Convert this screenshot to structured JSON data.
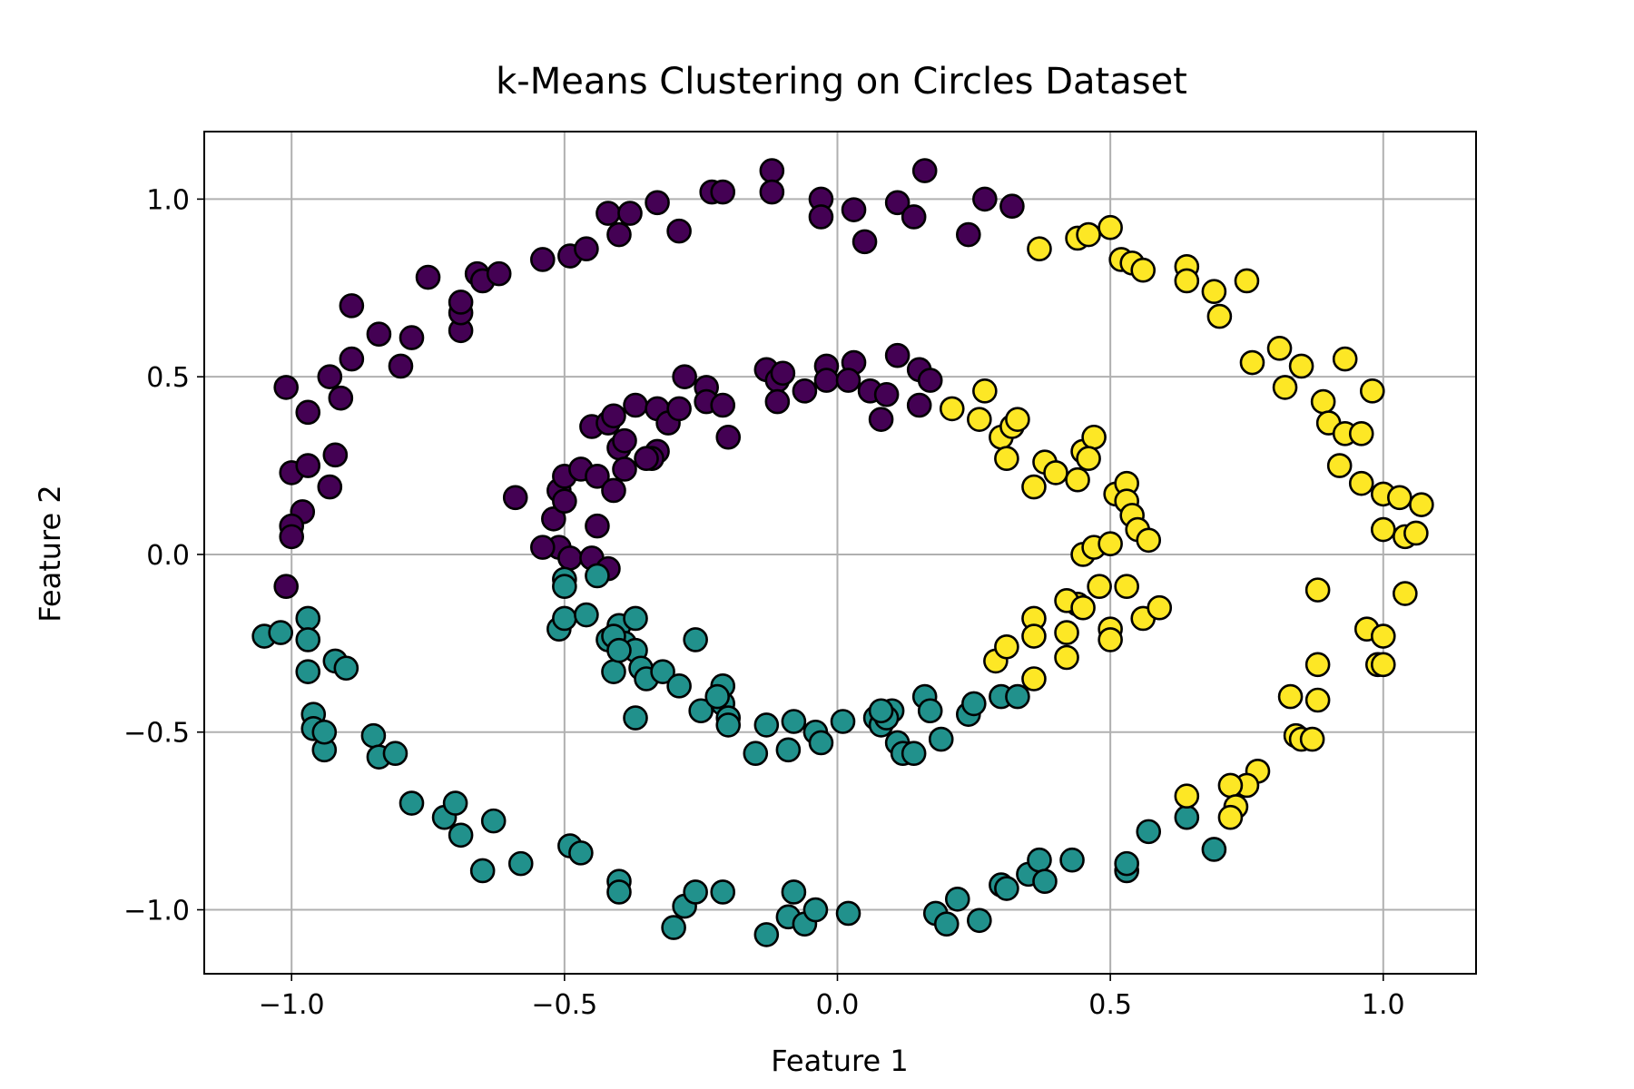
{
  "chart_data": {
    "type": "scatter",
    "title": "k-Means Clustering on Circles Dataset",
    "xlabel": "Feature 1",
    "ylabel": "Feature 2",
    "xlim": [
      -1.16,
      1.17
    ],
    "ylim": [
      -1.18,
      1.19
    ],
    "xticks": [
      -1.0,
      -0.5,
      0.0,
      0.5,
      1.0
    ],
    "xtick_labels": [
      "−1.0",
      "−0.5",
      "0.0",
      "0.5",
      "1.0"
    ],
    "yticks": [
      -1.0,
      -0.5,
      0.0,
      0.5,
      1.0
    ],
    "ytick_labels": [
      "−1.0",
      "−0.5",
      "0.0",
      "0.5",
      "1.0"
    ],
    "grid": true,
    "series": [
      {
        "color": "#440154",
        "points": [
          [
            -1.01,
            0.47
          ],
          [
            -0.97,
            0.4
          ],
          [
            -1.0,
            0.23
          ],
          [
            -0.97,
            0.25
          ],
          [
            -0.92,
            0.28
          ],
          [
            -0.93,
            0.19
          ],
          [
            -0.98,
            0.12
          ],
          [
            -1.0,
            0.08
          ],
          [
            -1.0,
            0.05
          ],
          [
            -1.01,
            -0.09
          ],
          [
            -0.93,
            0.5
          ],
          [
            -0.91,
            0.44
          ],
          [
            -0.89,
            0.55
          ],
          [
            -0.89,
            0.7
          ],
          [
            -0.84,
            0.62
          ],
          [
            -0.78,
            0.61
          ],
          [
            -0.8,
            0.53
          ],
          [
            -0.75,
            0.78
          ],
          [
            -0.69,
            0.63
          ],
          [
            -0.69,
            0.68
          ],
          [
            -0.69,
            0.71
          ],
          [
            -0.66,
            0.79
          ],
          [
            -0.65,
            0.77
          ],
          [
            -0.62,
            0.79
          ],
          [
            -0.54,
            0.83
          ],
          [
            -0.49,
            0.84
          ],
          [
            -0.46,
            0.86
          ],
          [
            -0.42,
            0.96
          ],
          [
            -0.4,
            0.9
          ],
          [
            -0.38,
            0.96
          ],
          [
            -0.33,
            0.99
          ],
          [
            -0.29,
            0.91
          ],
          [
            -0.23,
            1.02
          ],
          [
            -0.21,
            1.02
          ],
          [
            -0.12,
            1.08
          ],
          [
            -0.12,
            1.02
          ],
          [
            -0.03,
            1.0
          ],
          [
            -0.03,
            0.95
          ],
          [
            0.03,
            0.97
          ],
          [
            0.05,
            0.88
          ],
          [
            0.11,
            0.99
          ],
          [
            0.14,
            0.95
          ],
          [
            0.16,
            1.08
          ],
          [
            0.24,
            0.9
          ],
          [
            0.27,
            1.0
          ],
          [
            0.32,
            0.98
          ],
          [
            -0.59,
            0.16
          ],
          [
            -0.51,
            0.02
          ],
          [
            -0.52,
            0.1
          ],
          [
            -0.51,
            0.18
          ],
          [
            -0.5,
            0.22
          ],
          [
            -0.47,
            0.24
          ],
          [
            -0.45,
            0.36
          ],
          [
            -0.44,
            0.22
          ],
          [
            -0.42,
            0.37
          ],
          [
            -0.41,
            0.39
          ],
          [
            -0.4,
            0.3
          ],
          [
            -0.39,
            0.24
          ],
          [
            -0.41,
            0.18
          ],
          [
            -0.44,
            0.08
          ],
          [
            -0.37,
            0.42
          ],
          [
            -0.33,
            0.41
          ],
          [
            -0.31,
            0.37
          ],
          [
            -0.28,
            0.5
          ],
          [
            -0.24,
            0.47
          ],
          [
            -0.24,
            0.43
          ],
          [
            -0.21,
            0.42
          ],
          [
            -0.2,
            0.33
          ],
          [
            -0.13,
            0.52
          ],
          [
            -0.11,
            0.49
          ],
          [
            -0.1,
            0.51
          ],
          [
            -0.11,
            0.43
          ],
          [
            -0.06,
            0.46
          ],
          [
            -0.02,
            0.53
          ],
          [
            -0.02,
            0.49
          ],
          [
            0.03,
            0.54
          ],
          [
            0.06,
            0.46
          ],
          [
            0.08,
            0.38
          ],
          [
            0.11,
            0.56
          ],
          [
            0.15,
            0.52
          ],
          [
            0.15,
            0.42
          ],
          [
            0.17,
            0.49
          ],
          [
            -0.33,
            0.29
          ],
          [
            -0.34,
            0.27
          ],
          [
            -0.49,
            -0.01
          ],
          [
            -0.45,
            -0.01
          ],
          [
            -0.42,
            -0.04
          ],
          [
            -0.5,
            0.15
          ],
          [
            -0.54,
            0.02
          ],
          [
            -0.35,
            0.27
          ],
          [
            -0.39,
            0.32
          ],
          [
            -0.29,
            0.41
          ],
          [
            0.02,
            0.49
          ],
          [
            0.09,
            0.45
          ]
        ]
      },
      {
        "color": "#21918c",
        "points": [
          [
            -1.05,
            -0.23
          ],
          [
            -1.02,
            -0.22
          ],
          [
            -0.97,
            -0.18
          ],
          [
            -0.97,
            -0.24
          ],
          [
            -0.97,
            -0.33
          ],
          [
            -0.96,
            -0.45
          ],
          [
            -0.96,
            -0.49
          ],
          [
            -0.94,
            -0.55
          ],
          [
            -0.94,
            -0.5
          ],
          [
            -0.92,
            -0.3
          ],
          [
            -0.9,
            -0.32
          ],
          [
            -0.85,
            -0.51
          ],
          [
            -0.84,
            -0.57
          ],
          [
            -0.81,
            -0.56
          ],
          [
            -0.78,
            -0.7
          ],
          [
            -0.72,
            -0.74
          ],
          [
            -0.7,
            -0.7
          ],
          [
            -0.69,
            -0.79
          ],
          [
            -0.63,
            -0.75
          ],
          [
            -0.65,
            -0.89
          ],
          [
            -0.58,
            -0.87
          ],
          [
            -0.49,
            -0.82
          ],
          [
            -0.47,
            -0.84
          ],
          [
            -0.4,
            -0.92
          ],
          [
            -0.4,
            -0.95
          ],
          [
            -0.3,
            -1.05
          ],
          [
            -0.28,
            -0.99
          ],
          [
            -0.26,
            -0.95
          ],
          [
            -0.21,
            -0.95
          ],
          [
            -0.13,
            -1.07
          ],
          [
            -0.09,
            -1.02
          ],
          [
            -0.06,
            -1.04
          ],
          [
            -0.08,
            -0.95
          ],
          [
            -0.04,
            -1.0
          ],
          [
            0.02,
            -1.01
          ],
          [
            0.18,
            -1.01
          ],
          [
            0.2,
            -1.04
          ],
          [
            0.22,
            -0.97
          ],
          [
            0.26,
            -1.03
          ],
          [
            0.3,
            -0.93
          ],
          [
            0.31,
            -0.94
          ],
          [
            0.35,
            -0.9
          ],
          [
            0.37,
            -0.86
          ],
          [
            0.38,
            -0.92
          ],
          [
            0.43,
            -0.86
          ],
          [
            0.53,
            -0.89
          ],
          [
            0.53,
            -0.87
          ],
          [
            0.57,
            -0.78
          ],
          [
            0.64,
            -0.74
          ],
          [
            0.69,
            -0.83
          ],
          [
            -0.51,
            -0.21
          ],
          [
            -0.5,
            -0.07
          ],
          [
            -0.5,
            -0.09
          ],
          [
            -0.5,
            -0.18
          ],
          [
            -0.46,
            -0.17
          ],
          [
            -0.44,
            -0.06
          ],
          [
            -0.42,
            -0.24
          ],
          [
            -0.4,
            -0.2
          ],
          [
            -0.39,
            -0.25
          ],
          [
            -0.37,
            -0.18
          ],
          [
            -0.37,
            -0.27
          ],
          [
            -0.36,
            -0.32
          ],
          [
            -0.37,
            -0.46
          ],
          [
            -0.35,
            -0.35
          ],
          [
            -0.32,
            -0.33
          ],
          [
            -0.41,
            -0.33
          ],
          [
            -0.29,
            -0.37
          ],
          [
            -0.26,
            -0.24
          ],
          [
            -0.25,
            -0.44
          ],
          [
            -0.21,
            -0.37
          ],
          [
            -0.21,
            -0.42
          ],
          [
            -0.22,
            -0.4
          ],
          [
            -0.2,
            -0.46
          ],
          [
            -0.2,
            -0.48
          ],
          [
            -0.15,
            -0.56
          ],
          [
            -0.13,
            -0.48
          ],
          [
            -0.09,
            -0.55
          ],
          [
            -0.08,
            -0.47
          ],
          [
            -0.04,
            -0.5
          ],
          [
            -0.03,
            -0.53
          ],
          [
            0.01,
            -0.47
          ],
          [
            0.07,
            -0.46
          ],
          [
            0.08,
            -0.48
          ],
          [
            0.1,
            -0.44
          ],
          [
            0.09,
            -0.46
          ],
          [
            0.11,
            -0.53
          ],
          [
            0.12,
            -0.56
          ],
          [
            0.14,
            -0.56
          ],
          [
            0.16,
            -0.4
          ],
          [
            0.17,
            -0.44
          ],
          [
            0.19,
            -0.52
          ],
          [
            0.24,
            -0.45
          ],
          [
            0.25,
            -0.42
          ],
          [
            0.3,
            -0.4
          ],
          [
            0.33,
            -0.4
          ],
          [
            0.08,
            -0.44
          ],
          [
            -0.41,
            -0.23
          ],
          [
            -0.4,
            -0.27
          ]
        ]
      },
      {
        "color": "#fde725",
        "points": [
          [
            0.37,
            0.86
          ],
          [
            0.44,
            0.89
          ],
          [
            0.46,
            0.9
          ],
          [
            0.5,
            0.92
          ],
          [
            0.52,
            0.83
          ],
          [
            0.54,
            0.82
          ],
          [
            0.56,
            0.8
          ],
          [
            0.64,
            0.81
          ],
          [
            0.64,
            0.77
          ],
          [
            0.69,
            0.74
          ],
          [
            0.7,
            0.67
          ],
          [
            0.75,
            0.77
          ],
          [
            0.76,
            0.54
          ],
          [
            0.81,
            0.58
          ],
          [
            0.82,
            0.47
          ],
          [
            0.85,
            0.53
          ],
          [
            0.93,
            0.55
          ],
          [
            0.89,
            0.43
          ],
          [
            0.9,
            0.37
          ],
          [
            0.93,
            0.34
          ],
          [
            0.96,
            0.34
          ],
          [
            0.98,
            0.46
          ],
          [
            0.92,
            0.25
          ],
          [
            0.96,
            0.2
          ],
          [
            1.0,
            0.17
          ],
          [
            1.03,
            0.16
          ],
          [
            1.07,
            0.14
          ],
          [
            1.0,
            0.07
          ],
          [
            1.04,
            0.05
          ],
          [
            1.06,
            0.06
          ],
          [
            1.04,
            -0.11
          ],
          [
            0.88,
            -0.1
          ],
          [
            0.97,
            -0.21
          ],
          [
            0.99,
            -0.31
          ],
          [
            1.0,
            -0.23
          ],
          [
            1.0,
            -0.31
          ],
          [
            0.88,
            -0.31
          ],
          [
            0.88,
            -0.41
          ],
          [
            0.83,
            -0.4
          ],
          [
            0.84,
            -0.51
          ],
          [
            0.85,
            -0.52
          ],
          [
            0.87,
            -0.52
          ],
          [
            0.77,
            -0.61
          ],
          [
            0.75,
            -0.65
          ],
          [
            0.72,
            -0.65
          ],
          [
            0.73,
            -0.71
          ],
          [
            0.72,
            -0.74
          ],
          [
            0.64,
            -0.68
          ],
          [
            0.21,
            0.41
          ],
          [
            0.26,
            0.38
          ],
          [
            0.27,
            0.46
          ],
          [
            0.3,
            0.33
          ],
          [
            0.31,
            0.27
          ],
          [
            0.32,
            0.36
          ],
          [
            0.33,
            0.38
          ],
          [
            0.36,
            0.19
          ],
          [
            0.38,
            0.26
          ],
          [
            0.4,
            0.23
          ],
          [
            0.44,
            0.21
          ],
          [
            0.45,
            0.29
          ],
          [
            0.47,
            0.33
          ],
          [
            0.46,
            0.27
          ],
          [
            0.51,
            0.17
          ],
          [
            0.53,
            0.2
          ],
          [
            0.53,
            0.15
          ],
          [
            0.54,
            0.11
          ],
          [
            0.55,
            0.07
          ],
          [
            0.57,
            0.04
          ],
          [
            0.45,
            0.0
          ],
          [
            0.47,
            0.02
          ],
          [
            0.5,
            0.03
          ],
          [
            0.48,
            -0.09
          ],
          [
            0.53,
            -0.09
          ],
          [
            0.44,
            -0.14
          ],
          [
            0.42,
            -0.13
          ],
          [
            0.45,
            -0.15
          ],
          [
            0.5,
            -0.21
          ],
          [
            0.5,
            -0.24
          ],
          [
            0.56,
            -0.18
          ],
          [
            0.59,
            -0.15
          ],
          [
            0.42,
            -0.22
          ],
          [
            0.42,
            -0.29
          ],
          [
            0.36,
            -0.18
          ],
          [
            0.36,
            -0.23
          ],
          [
            0.36,
            -0.35
          ],
          [
            0.29,
            -0.3
          ],
          [
            0.31,
            -0.26
          ]
        ]
      }
    ]
  }
}
